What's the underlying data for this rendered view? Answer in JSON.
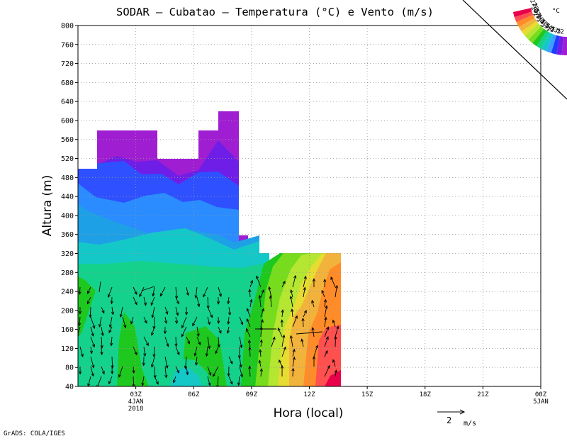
{
  "chart_data": {
    "type": "heatmap",
    "title": "SODAR – Cubatao – Temperatura (°C) e Vento (m/s)",
    "xlabel": "Hora (local)",
    "ylabel": "Altura (m)",
    "ylim": [
      40,
      800
    ],
    "y_ticks": [
      40,
      80,
      120,
      160,
      200,
      240,
      280,
      320,
      360,
      400,
      440,
      480,
      520,
      560,
      600,
      640,
      680,
      720,
      760,
      800
    ],
    "xlim": [
      0,
      24
    ],
    "x_ticks": [
      {
        "hour": 3,
        "lines": [
          "03Z",
          "4JAN",
          "2018"
        ]
      },
      {
        "hour": 6,
        "lines": [
          "06Z"
        ]
      },
      {
        "hour": 9,
        "lines": [
          "09Z"
        ]
      },
      {
        "hour": 12,
        "lines": [
          "12Z"
        ]
      },
      {
        "hour": 15,
        "lines": [
          "15Z"
        ]
      },
      {
        "hour": 18,
        "lines": [
          "18Z"
        ]
      },
      {
        "hour": 21,
        "lines": [
          "21Z"
        ]
      },
      {
        "hour": 24,
        "lines": [
          "00Z",
          "5JAN"
        ]
      }
    ],
    "grid": true,
    "colorbar": {
      "unit": "°C",
      "levels": [
        "28",
        "27.5",
        "27",
        "26.5",
        "26",
        "25.5",
        "25",
        "24.5",
        "24",
        "23.5",
        "23",
        "22.5",
        "22"
      ],
      "colors": [
        "#e8004a",
        "#ff5050",
        "#ff8c28",
        "#f2b33c",
        "#e6dc32",
        "#b4e632",
        "#78dc1e",
        "#1ec81e",
        "#14d28c",
        "#14c8c8",
        "#3ca0ff",
        "#1e3cff",
        "#6e1ee6",
        "#a01ed2"
      ]
    },
    "wind_scale": {
      "value": "2",
      "unit": "m/s"
    },
    "credit": "GrADS: COLA/IGES"
  }
}
